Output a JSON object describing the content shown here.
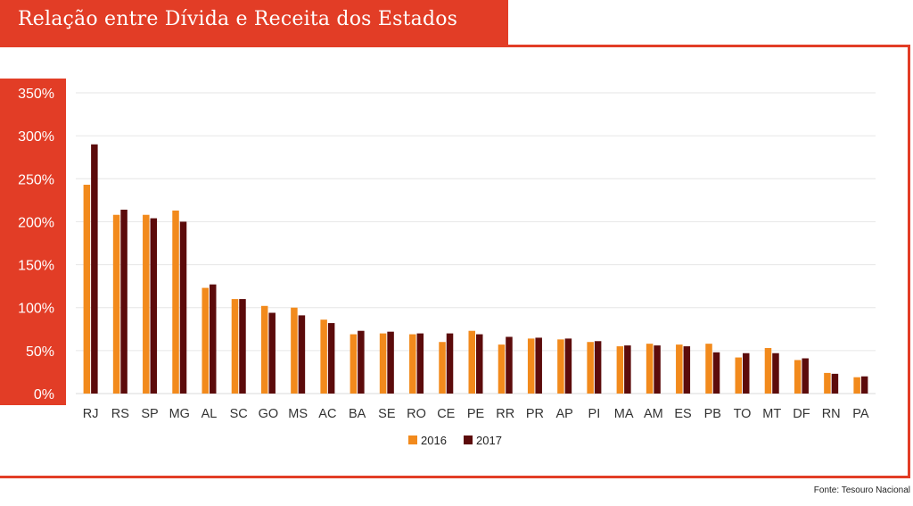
{
  "header": {
    "title": "Relação entre Dívida e Receita dos Estados"
  },
  "footer": {
    "source": "Fonte: Tesouro Nacional"
  },
  "colors": {
    "accent": "#e23d26",
    "series_2016": "#f28a1c",
    "series_2017": "#5c0b0b"
  },
  "chart_data": {
    "type": "bar",
    "title": "Relação entre Dívida e Receita dos Estados",
    "xlabel": "",
    "ylabel": "",
    "ylim": [
      0,
      350
    ],
    "yticks": [
      "0%",
      "50%",
      "100%",
      "150%",
      "200%",
      "250%",
      "300%",
      "350%"
    ],
    "grid": true,
    "legend": "bottom",
    "categories": [
      "RJ",
      "RS",
      "SP",
      "MG",
      "AL",
      "SC",
      "GO",
      "MS",
      "AC",
      "BA",
      "SE",
      "RO",
      "CE",
      "PE",
      "RR",
      "PR",
      "AP",
      "PI",
      "MA",
      "AM",
      "ES",
      "PB",
      "TO",
      "MT",
      "DF",
      "RN",
      "PA"
    ],
    "series": [
      {
        "name": "2016",
        "values": [
          243,
          208,
          208,
          213,
          123,
          110,
          102,
          100,
          86,
          69,
          70,
          69,
          60,
          73,
          57,
          64,
          63,
          60,
          55,
          58,
          57,
          58,
          42,
          53,
          39,
          24,
          19
        ]
      },
      {
        "name": "2017",
        "values": [
          290,
          214,
          204,
          200,
          127,
          110,
          94,
          91,
          82,
          73,
          72,
          70,
          70,
          69,
          66,
          65,
          64,
          61,
          56,
          56,
          55,
          48,
          47,
          47,
          41,
          23,
          20
        ]
      }
    ]
  }
}
